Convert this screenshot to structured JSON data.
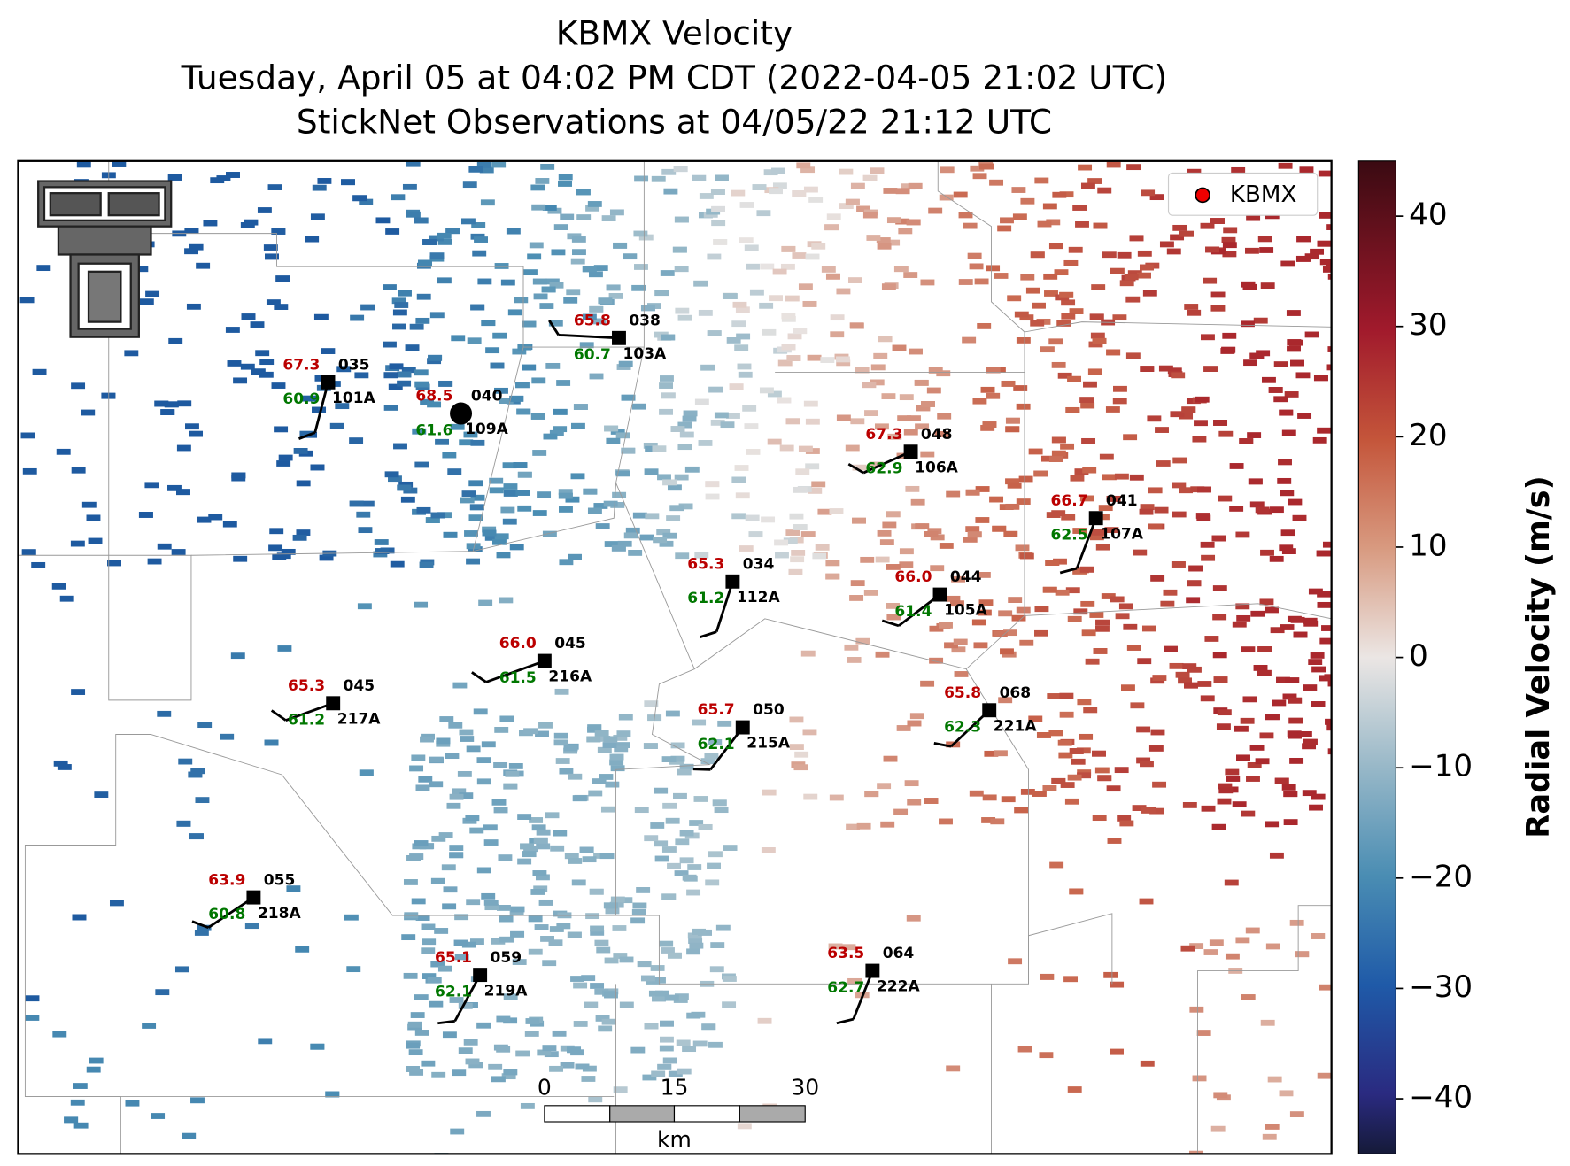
{
  "title_lines": [
    "KBMX Velocity",
    "Tuesday, April 05 at 04:02 PM CDT (2022-04-05 21:02 UTC)",
    "StickNet Observations at 04/05/22 21:12 UTC"
  ],
  "legend": {
    "label": "KBMX"
  },
  "stations": [
    {
      "temp": "67.3",
      "dewpoint": "60.9",
      "direction": "035",
      "id": "101A"
    },
    {
      "temp": "68.5",
      "dewpoint": "61.6",
      "direction": "040",
      "id": "109A"
    },
    {
      "temp": "65.8",
      "dewpoint": "60.7",
      "direction": "038",
      "id": "103A"
    },
    {
      "temp": "67.3",
      "dewpoint": "62.9",
      "direction": "048",
      "id": "106A"
    },
    {
      "temp": "66.7",
      "dewpoint": "62.5",
      "direction": "041",
      "id": "107A"
    },
    {
      "temp": "65.3",
      "dewpoint": "61.2",
      "direction": "034",
      "id": "112A"
    },
    {
      "temp": "66.0",
      "dewpoint": "61.4",
      "direction": "044",
      "id": "105A"
    },
    {
      "temp": "66.0",
      "dewpoint": "61.5",
      "direction": "045",
      "id": "216A"
    },
    {
      "temp": "65.3",
      "dewpoint": "61.2",
      "direction": "045",
      "id": "217A"
    },
    {
      "temp": "65.7",
      "dewpoint": "62.1",
      "direction": "050",
      "id": "215A"
    },
    {
      "temp": "65.8",
      "dewpoint": "62.3",
      "direction": "068",
      "id": "221A"
    },
    {
      "temp": "63.9",
      "dewpoint": "60.8",
      "direction": "055",
      "id": "218A"
    },
    {
      "temp": "65.1",
      "dewpoint": "62.1",
      "direction": "059",
      "id": "219A"
    },
    {
      "temp": "63.5",
      "dewpoint": "62.7",
      "direction": "064",
      "id": "222A"
    }
  ],
  "scale_bar": {
    "labels": [
      "0",
      "15",
      "30"
    ],
    "unit": "km"
  },
  "colorbar": {
    "label": "Radial Velocity (m/s)",
    "lim": [
      -45,
      45
    ],
    "ticks": [
      {
        "value": -40,
        "label": "−40"
      },
      {
        "value": -30,
        "label": "−30"
      },
      {
        "value": -20,
        "label": "−20"
      },
      {
        "value": -10,
        "label": "−10"
      },
      0,
      10,
      20,
      30,
      40
    ]
  }
}
